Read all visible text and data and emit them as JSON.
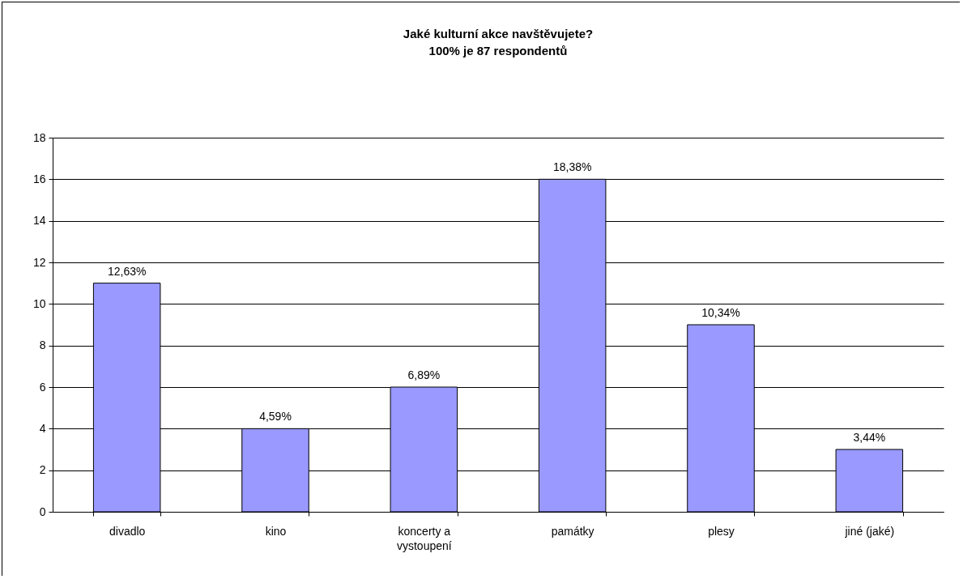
{
  "chart_data": {
    "type": "bar",
    "title": "Jaké kulturní akce navštěvujete?",
    "subtitle": "100% je 87 respondentů",
    "categories": [
      "divadlo",
      "kino",
      "koncerty a\nvystoupení",
      "památky",
      "plesy",
      "jiné (jaké)"
    ],
    "values": [
      11,
      4,
      6,
      16,
      9,
      3
    ],
    "annotations": [
      {
        "text": "12,63%",
        "x": "divadlo",
        "y": 11
      },
      {
        "text": "4,59%",
        "x": "kino",
        "y": 4
      },
      {
        "text": "6,89%",
        "x": "koncerty a\nvystoupení",
        "y": 6
      },
      {
        "text": "18,38%",
        "x": "památky",
        "y": 16
      },
      {
        "text": "10,34%",
        "x": "plesy",
        "y": 9
      },
      {
        "text": "3,44%",
        "x": "jiné (jaké)",
        "y": 3
      }
    ],
    "color": "#9999ff",
    "ylim": [
      0,
      18
    ],
    "yticks": [
      0,
      2,
      4,
      6,
      8,
      10,
      12,
      14,
      16,
      18
    ],
    "grid": "y"
  }
}
